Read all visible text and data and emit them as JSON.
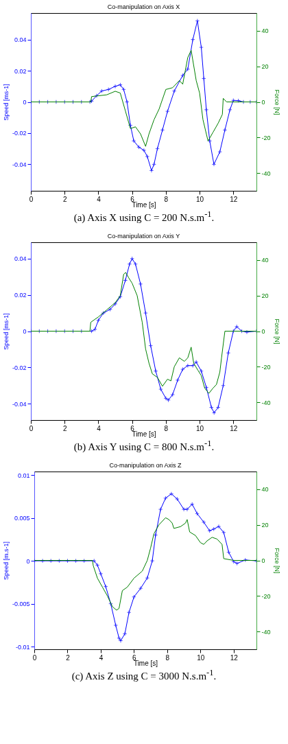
{
  "chart_data": [
    {
      "type": "line",
      "title": "Co-manipulation on Axis X",
      "xlabel": "Time [s]",
      "ylabel": "Speed [ms-1]",
      "y2label": "Force [N]",
      "xlim": [
        0,
        13.37
      ],
      "xticks": [
        0,
        2,
        4,
        6,
        8,
        10,
        12
      ],
      "ylim": [
        -0.057,
        0.057
      ],
      "yticks": [
        -0.04,
        -0.02,
        0,
        0.02,
        0.04
      ],
      "y2lim": [
        -50,
        50
      ],
      "y2ticks": [
        -40,
        -20,
        0,
        20,
        40
      ],
      "annotations": [
        "(a) Axis X using C = 200 N.s.m$^{-1}$."
      ],
      "series": [
        {
          "color": "#0000ff",
          "marker": "cross",
          "x": [
            0,
            0.5,
            1,
            1.5,
            2,
            2.5,
            3,
            3.5,
            3.6,
            3.9,
            4.2,
            4.6,
            5.0,
            5.3,
            5.5,
            5.7,
            5.9,
            6.1,
            6.4,
            6.7,
            6.9,
            7.15,
            7.3,
            7.5,
            7.8,
            8.1,
            8.5,
            9.0,
            9.3,
            9.6,
            9.87,
            10.1,
            10.25,
            10.4,
            10.6,
            10.85,
            11.2,
            11.5,
            11.8,
            12.0,
            12.3,
            12.6,
            13.0,
            13.37
          ],
          "values": [
            0,
            0,
            0,
            0,
            0,
            0,
            0,
            0,
            0.0005,
            0.004,
            0.007,
            0.008,
            0.01,
            0.011,
            0.008,
            0.0,
            -0.015,
            -0.025,
            -0.029,
            -0.031,
            -0.035,
            -0.044,
            -0.04,
            -0.03,
            -0.018,
            -0.006,
            0.007,
            0.017,
            0.021,
            0.04,
            0.052,
            0.035,
            0.015,
            -0.005,
            -0.025,
            -0.04,
            -0.032,
            -0.018,
            -0.005,
            0.001,
            0.0008,
            0,
            0,
            0
          ]
        },
        {
          "color": "#008000",
          "axis": "y2",
          "marker": "none",
          "x": [
            0,
            3.55,
            3.6,
            4.5,
            5.0,
            5.3,
            5.6,
            5.9,
            6.2,
            6.5,
            6.8,
            7.0,
            7.3,
            7.6,
            8.0,
            8.4,
            8.8,
            9.0,
            9.3,
            9.5,
            9.8,
            10.0,
            10.2,
            10.5,
            10.8,
            11.1,
            11.35,
            11.4,
            11.6,
            13.37
          ],
          "values": [
            0,
            0,
            3,
            4,
            6,
            5,
            -5,
            -15,
            -14,
            -18,
            -25,
            -18,
            -10,
            -4,
            7,
            8,
            12,
            10,
            25,
            29,
            12,
            5,
            -10,
            -22,
            -17,
            -12,
            -7,
            2,
            0,
            0
          ]
        }
      ]
    },
    {
      "type": "line",
      "title": "Co-manipulation on Axis Y",
      "xlabel": "Time [s]",
      "ylabel": "Speed [ms-1]",
      "y2label": "Force [N]",
      "xlim": [
        0,
        13.37
      ],
      "xticks": [
        0,
        2,
        4,
        6,
        8,
        10,
        12
      ],
      "ylim": [
        -0.049,
        0.049
      ],
      "yticks": [
        -0.04,
        -0.02,
        0,
        0.02,
        0.04
      ],
      "y2lim": [
        -50,
        50
      ],
      "y2ticks": [
        -40,
        -20,
        0,
        20,
        40
      ],
      "annotations": [
        "(b) Axis Y using C = 800 N.s.m$^{-1}$."
      ],
      "series": [
        {
          "color": "#0000ff",
          "marker": "cross",
          "x": [
            0,
            0.5,
            1,
            1.5,
            2,
            2.5,
            3,
            3.6,
            3.8,
            4.0,
            4.3,
            4.7,
            5.0,
            5.3,
            5.6,
            5.85,
            6.0,
            6.2,
            6.5,
            6.8,
            7.1,
            7.4,
            7.7,
            8.0,
            8.15,
            8.4,
            8.7,
            9.0,
            9.3,
            9.6,
            9.8,
            10.1,
            10.4,
            10.7,
            10.86,
            11.1,
            11.4,
            11.7,
            12.0,
            12.2,
            12.5,
            12.8,
            13.37
          ],
          "values": [
            0,
            0,
            0,
            0,
            0,
            0,
            0,
            0,
            0.001,
            0.006,
            0.01,
            0.012,
            0.015,
            0.019,
            0.028,
            0.037,
            0.04,
            0.037,
            0.026,
            0.01,
            -0.008,
            -0.022,
            -0.032,
            -0.037,
            -0.038,
            -0.035,
            -0.027,
            -0.021,
            -0.019,
            -0.019,
            -0.017,
            -0.022,
            -0.031,
            -0.042,
            -0.045,
            -0.042,
            -0.03,
            -0.012,
            0.0,
            0.0025,
            0.0,
            -0.0005,
            0
          ]
        },
        {
          "color": "#008000",
          "axis": "y2",
          "marker": "none",
          "x": [
            0,
            3.5,
            3.55,
            4.0,
            4.5,
            5.0,
            5.3,
            5.5,
            5.62,
            5.8,
            6.0,
            6.3,
            6.6,
            6.8,
            7.0,
            7.2,
            7.5,
            7.8,
            8.1,
            8.3,
            8.5,
            8.8,
            9.1,
            9.3,
            9.5,
            9.65,
            9.9,
            10.1,
            10.3,
            10.55,
            10.8,
            11.0,
            11.2,
            11.3,
            11.5,
            12.0,
            13.37
          ],
          "values": [
            0,
            0,
            5,
            8,
            12,
            16,
            20,
            32,
            33,
            30,
            27,
            20,
            5,
            -10,
            -18,
            -24,
            -26,
            -31,
            -27,
            -28,
            -20,
            -15,
            -17,
            -15,
            -9,
            -18,
            -22,
            -25,
            -32,
            -35,
            -32,
            -30,
            -23,
            -15,
            0,
            0,
            0
          ]
        }
      ]
    },
    {
      "type": "line",
      "title": "Co-manipulation on Axis Z",
      "xlabel": "Time [s]",
      "ylabel": "Speed [m.s-1]",
      "y2label": "Force [N]",
      "xlim": [
        0,
        13.37
      ],
      "xticks": [
        0,
        2,
        4,
        6,
        8,
        10,
        12
      ],
      "ylim": [
        -0.0103,
        0.0104
      ],
      "yticks": [
        -0.01,
        -0.005,
        0,
        0.005,
        0.01
      ],
      "y2lim": [
        -50,
        50
      ],
      "y2ticks": [
        -40,
        -20,
        0,
        20,
        40
      ],
      "annotations": [
        "(c) Axis Z using C = 3000 N.s.m$^{-1}$."
      ],
      "series": [
        {
          "color": "#0000ff",
          "marker": "cross",
          "x": [
            0,
            0.5,
            1,
            1.5,
            2,
            2.5,
            3,
            3.6,
            3.8,
            4.0,
            4.3,
            4.6,
            4.9,
            5.1,
            5.2,
            5.45,
            5.7,
            6.0,
            6.4,
            6.8,
            7.1,
            7.3,
            7.6,
            7.9,
            8.25,
            8.6,
            9.0,
            9.2,
            9.5,
            9.8,
            10.2,
            10.55,
            10.8,
            11.1,
            11.4,
            11.7,
            12.0,
            12.2,
            12.7,
            13.37
          ],
          "values": [
            0,
            0,
            0,
            0,
            0,
            0,
            0,
            0,
            -0.0005,
            -0.0015,
            -0.003,
            -0.005,
            -0.0075,
            -0.009,
            -0.0093,
            -0.0085,
            -0.006,
            -0.0042,
            -0.0032,
            -0.002,
            0.0,
            0.003,
            0.006,
            0.0073,
            0.0078,
            0.0072,
            0.006,
            0.006,
            0.0066,
            0.0055,
            0.0045,
            0.0035,
            0.0037,
            0.004,
            0.0033,
            0.001,
            -0.0001,
            -0.0003,
            0.0001,
            0
          ]
        },
        {
          "color": "#008000",
          "axis": "y2",
          "marker": "none",
          "x": [
            0,
            3.5,
            3.55,
            3.8,
            4.1,
            4.4,
            4.7,
            4.95,
            5.1,
            5.3,
            5.6,
            6.0,
            6.5,
            6.8,
            7.0,
            7.2,
            7.5,
            7.9,
            8.1,
            8.3,
            8.4,
            8.8,
            9.1,
            9.2,
            9.35,
            9.7,
            10.0,
            10.2,
            10.4,
            10.7,
            11.0,
            11.3,
            11.4,
            12.0,
            13.37
          ],
          "values": [
            0,
            0,
            -3,
            -10,
            -15,
            -20,
            -26,
            -28,
            -27,
            -17,
            -15,
            -10,
            -6,
            0,
            7,
            15,
            20,
            24,
            23,
            21,
            18,
            19,
            21,
            23,
            16,
            14,
            10,
            9,
            11,
            13,
            12,
            9,
            1,
            0,
            0
          ]
        }
      ]
    }
  ]
}
